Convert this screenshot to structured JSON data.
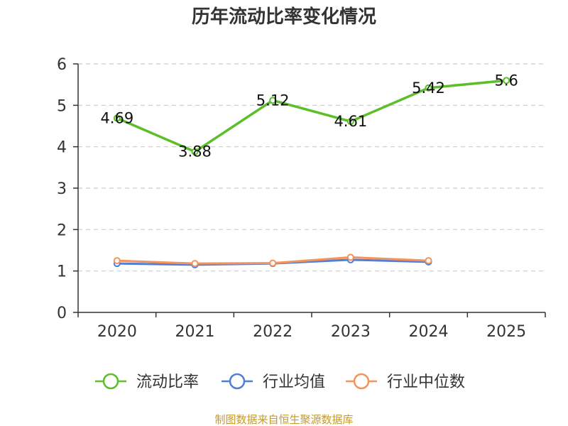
{
  "chart_data": {
    "type": "line",
    "title": "历年流动比率变化情况",
    "categories": [
      "2020",
      "2021",
      "2022",
      "2023",
      "2024",
      "2025"
    ],
    "ylim": [
      0,
      6
    ],
    "yticks": [
      0,
      1,
      2,
      3,
      4,
      5,
      6
    ],
    "grid": true,
    "legend_position": "bottom",
    "series": [
      {
        "name": "流动比率",
        "color": "#5cbf2a",
        "values": [
          4.69,
          3.88,
          5.12,
          4.61,
          5.42,
          5.6
        ],
        "labels": [
          "4.69",
          "3.88",
          "5.12",
          "4.61",
          "5.42",
          "5.6"
        ]
      },
      {
        "name": "行业均值",
        "color": "#4f7fd8",
        "values": [
          1.18,
          1.15,
          1.18,
          1.27,
          1.22,
          null
        ]
      },
      {
        "name": "行业中位数",
        "color": "#f4935a",
        "values": [
          1.25,
          1.18,
          1.19,
          1.33,
          1.25,
          null
        ]
      }
    ],
    "source": "制图数据来自恒生聚源数据库"
  }
}
